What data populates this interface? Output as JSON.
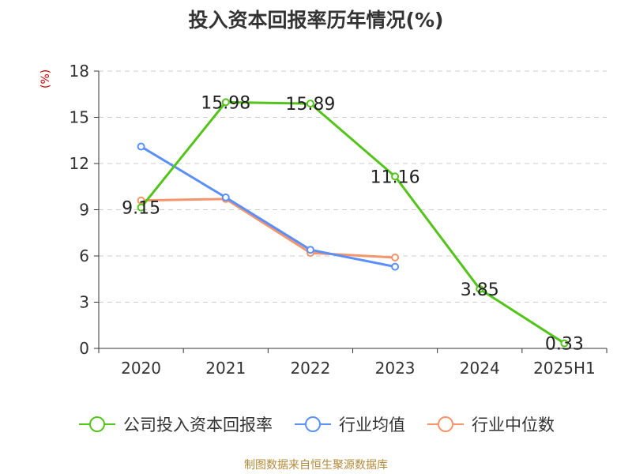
{
  "title": "投入资本回报率历年情况(%)",
  "unit_label": "(%)",
  "source": "制图数据来自恒生聚源数据库",
  "chart_data": {
    "type": "line",
    "categories": [
      "2020",
      "2021",
      "2022",
      "2023",
      "2024",
      "2025H1"
    ],
    "ylim": [
      0,
      18
    ],
    "yticks": [
      0,
      3,
      6,
      9,
      12,
      15,
      18
    ],
    "grid": true,
    "legend_position": "bottom",
    "series": [
      {
        "name": "公司投入资本回报率",
        "color": "#52c41a",
        "values": [
          9.15,
          15.98,
          15.89,
          11.16,
          3.85,
          0.33
        ],
        "show_labels": true
      },
      {
        "name": "行业均值",
        "color": "#5b8ff9",
        "values": [
          13.1,
          9.8,
          6.4,
          5.3,
          null,
          null
        ],
        "show_labels": false
      },
      {
        "name": "行业中位数",
        "color": "#f6956b",
        "values": [
          9.6,
          9.7,
          6.2,
          5.9,
          null,
          null
        ],
        "show_labels": false
      }
    ]
  }
}
